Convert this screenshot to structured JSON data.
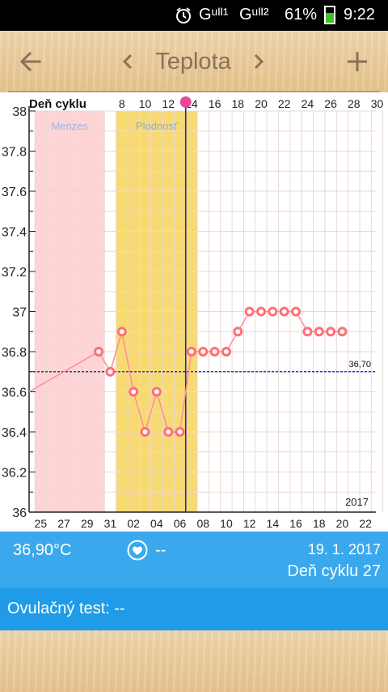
{
  "status_bar": {
    "signal_1": "Gᵘᴵᴵ¹",
    "signal_2": "Gᵘᴵᴵ²",
    "battery": "61%",
    "time": "9:22",
    "battery_fraction": 0.61,
    "battery_color": "#3fbf2f",
    "icons": [
      "alarm-clock-icon",
      "signal-icon",
      "signal-icon",
      "battery-icon"
    ]
  },
  "toolbar": {
    "title": "Teplota",
    "icons": [
      "arrow-left-icon",
      "chevron-left-icon",
      "chevron-right-icon",
      "plus-icon"
    ]
  },
  "chart": {
    "header_label": "Deň cyklu",
    "year": "2017",
    "band_labels": {
      "menses": "Menzes",
      "fertile": "Plodnosť"
    },
    "colors": {
      "menses": "#ffd4d6",
      "fertile": "#f8da74",
      "line": "#ff8d95",
      "marker": "#ff6f76",
      "today": "#1e2b9c",
      "coverline": "#0a17c8"
    }
  },
  "chart_data": {
    "type": "line",
    "ylim": [
      36,
      38
    ],
    "yticks": [
      "36",
      "36.2",
      "36.4",
      "36.6",
      "36.8",
      "37",
      "37.2",
      "37.4",
      "37.6",
      "37.8",
      "38"
    ],
    "cycle_day_labels": [
      "8",
      "10",
      "12",
      "14",
      "16",
      "18",
      "20",
      "22",
      "24",
      "26",
      "28",
      "30"
    ],
    "date_labels": [
      "25",
      "27",
      "29",
      "31",
      "02",
      "04",
      "06",
      "08",
      "10",
      "12",
      "14",
      "16",
      "18",
      "20",
      "22"
    ],
    "coverline": 36.7,
    "coverline_label": "36,70",
    "menses_cycle_days": [
      1,
      6
    ],
    "fertile_cycle_days": [
      8,
      14
    ],
    "today_cycle_day": 13,
    "series": [
      {
        "cycle_days": [
          0,
          6,
          7,
          8,
          9,
          10,
          11,
          12,
          13,
          14,
          15,
          16,
          17,
          18,
          19,
          20,
          21,
          22,
          23,
          24,
          25,
          26,
          27
        ],
        "values": [
          36.6,
          36.8,
          36.7,
          36.9,
          36.6,
          36.4,
          36.6,
          36.4,
          36.4,
          36.8,
          36.8,
          36.8,
          36.8,
          36.9,
          37.0,
          37.0,
          37.0,
          37.0,
          37.0,
          36.9,
          36.9,
          36.9,
          36.9
        ],
        "marked": [
          false,
          true,
          true,
          true,
          true,
          true,
          true,
          true,
          true,
          true,
          true,
          true,
          true,
          true,
          true,
          true,
          true,
          true,
          true,
          true,
          true,
          true,
          true
        ]
      }
    ]
  },
  "info": {
    "temperature": "36,90°C",
    "heart_value": "--",
    "heart_icon": "heart-icon",
    "date": "19. 1. 2017",
    "cycle_day": "Deň cyklu 27"
  },
  "ovulation": {
    "label": "Ovulačný test: --"
  }
}
